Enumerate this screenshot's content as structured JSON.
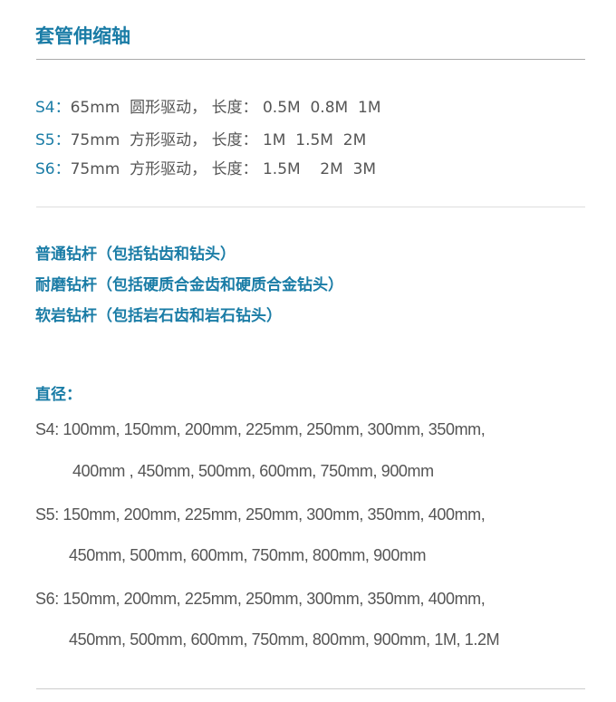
{
  "title": "套管伸缩轴",
  "specs": [
    {
      "key": "S4：",
      "text": "65mm  圆形驱动， 长度： 0.5M  0.8M  1M"
    },
    {
      "key": "S5：",
      "text": "75mm  方形驱动， 长度： 1M  1.5M  2M"
    },
    {
      "key": "S6：",
      "text": "75mm  方形驱动， 长度： 1.5M    2M  3M"
    }
  ],
  "rods": [
    "普通钻杆（包括钻齿和钻头）",
    "耐磨钻杆（包括硬质合金齿和硬质合金钻头）",
    "软岩钻杆（包括岩石齿和岩石钻头）"
  ],
  "diameter": {
    "heading": "直径：",
    "lines": [
      "S4: 100mm, 150mm, 200mm, 225mm, 250mm, 300mm, 350mm,",
      "400mm , 450mm, 500mm, 600mm, 750mm, 900mm",
      "S5: 150mm, 200mm, 225mm, 250mm, 300mm, 350mm, 400mm,",
      "450mm, 500mm, 600mm, 750mm, 800mm, 900mm",
      "S6: 150mm, 200mm, 225mm, 250mm, 300mm, 350mm, 400mm,",
      "450mm, 500mm, 600mm, 750mm, 800mm, 900mm, 1M, 1.2M"
    ]
  },
  "colors": {
    "accent": "#1a7ca6",
    "text": "#555555"
  }
}
